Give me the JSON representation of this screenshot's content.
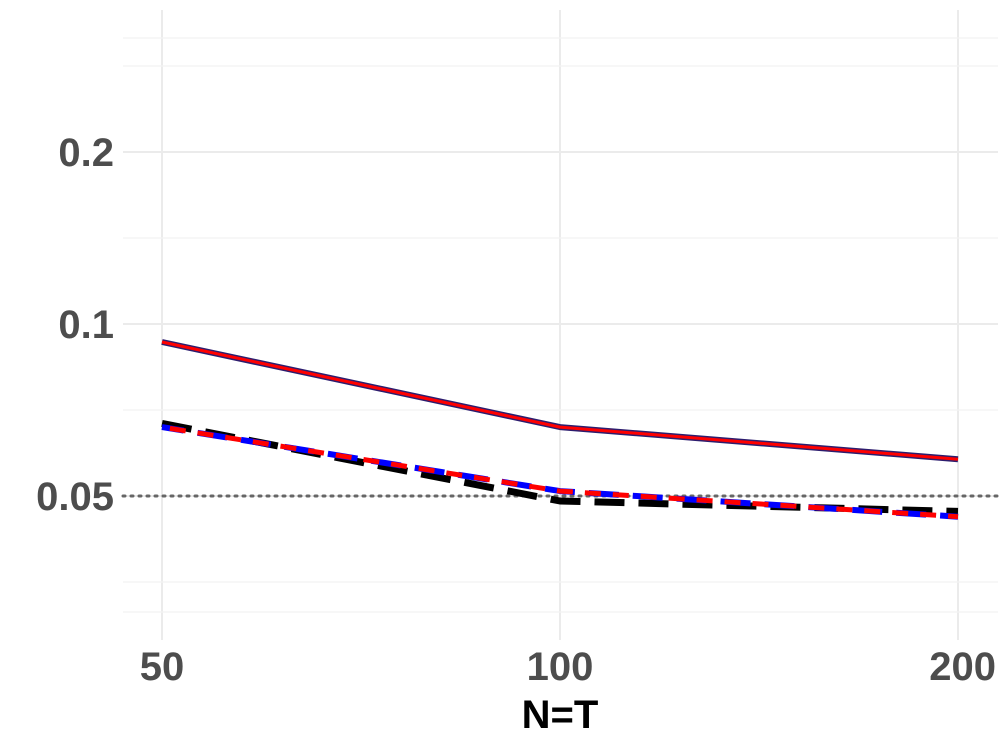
{
  "chart_data": {
    "type": "line",
    "title": "",
    "xlabel": "N=T",
    "ylabel": "",
    "x": [
      50,
      100,
      200
    ],
    "x_tick_labels": [
      "50",
      "100",
      "200"
    ],
    "x_scale": "log",
    "y_ticks": [
      0.05,
      0.1,
      0.2
    ],
    "y_tick_labels": [
      "0.05",
      "0.1",
      "0.2"
    ],
    "y_scale": "log",
    "ylim": [
      0.031,
      0.29
    ],
    "grid": true,
    "reference_line": {
      "y": 0.05,
      "style": "dotted",
      "color": "#666666"
    },
    "series": [
      {
        "values": [
          0.093,
          0.066,
          0.058
        ],
        "color": "#2d1d6e",
        "style": "solid"
      },
      {
        "values": [
          0.093,
          0.066,
          0.058
        ],
        "color": "#ff0000",
        "style": "solid"
      },
      {
        "values": [
          0.067,
          0.049,
          0.047
        ],
        "color": "#000000",
        "style": "longdash"
      },
      {
        "values": [
          0.066,
          0.051,
          0.046
        ],
        "color": "#0000ff",
        "style": "longdash"
      },
      {
        "values": [
          0.066,
          0.051,
          0.046
        ],
        "color": "#ff0000",
        "style": "dashed"
      }
    ]
  }
}
